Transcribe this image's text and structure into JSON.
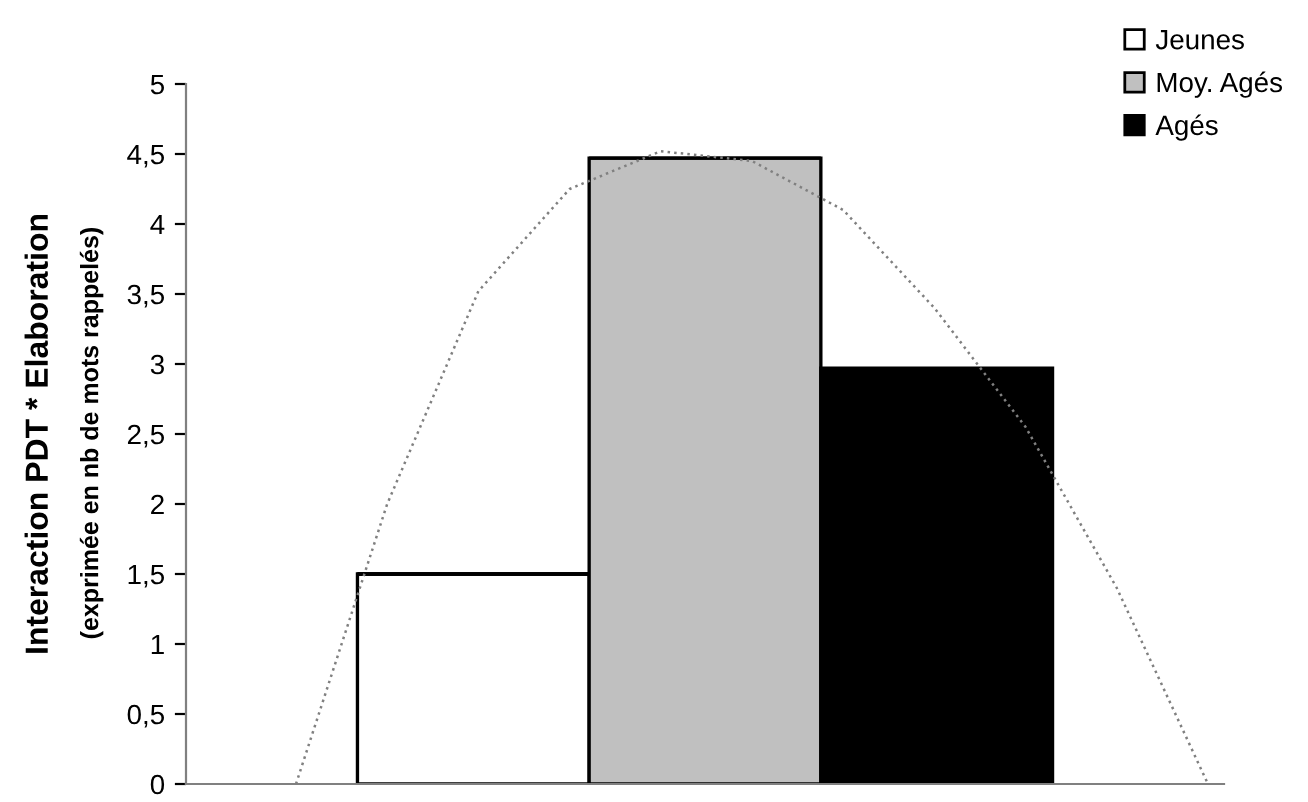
{
  "chart_data": [
    {
      "type": "bar",
      "ylabel": "Interaction PDT * Elaboration",
      "annotations": [
        "(exprimée en nb de mots rappelés)"
      ],
      "categories": [
        null,
        null,
        null
      ],
      "stacked": true,
      "series": [
        {
          "name": "Jeunes",
          "color": "#ffffff",
          "values": [
            1.5,
            0,
            0
          ]
        },
        {
          "name": "Moy. Agés",
          "color": "#c0c0c0",
          "values": [
            0,
            4.47,
            0
          ]
        },
        {
          "name": "Agés",
          "color": "#000000",
          "values": [
            0,
            0,
            2.97
          ]
        }
      ],
      "ylim": [
        0,
        5
      ],
      "yticks": [
        0,
        {
          "value": 0.5,
          "label": "0,5"
        },
        1,
        {
          "value": 1.5,
          "label": "1,5"
        },
        2,
        {
          "value": 2.5,
          "label": "2,5"
        },
        3,
        {
          "value": 3.5,
          "label": "3,5"
        },
        4,
        {
          "value": 4.5,
          "label": "4,5"
        },
        5
      ],
      "legend": "top right",
      "tick_labels": "y"
    },
    {
      "type": "line",
      "categories": [
        null,
        null,
        null,
        null,
        null,
        null,
        null,
        null,
        null,
        null,
        null
      ],
      "series": [
        {
          "color": "#808080",
          "line_style": "dotted",
          "values": [
            0,
            2.0,
            3.52,
            4.25,
            4.52,
            4.45,
            4.1,
            3.4,
            2.55,
            1.4,
            0
          ]
        }
      ],
      "ylim": [
        0,
        5
      ],
      "tick_labels": false
    }
  ]
}
